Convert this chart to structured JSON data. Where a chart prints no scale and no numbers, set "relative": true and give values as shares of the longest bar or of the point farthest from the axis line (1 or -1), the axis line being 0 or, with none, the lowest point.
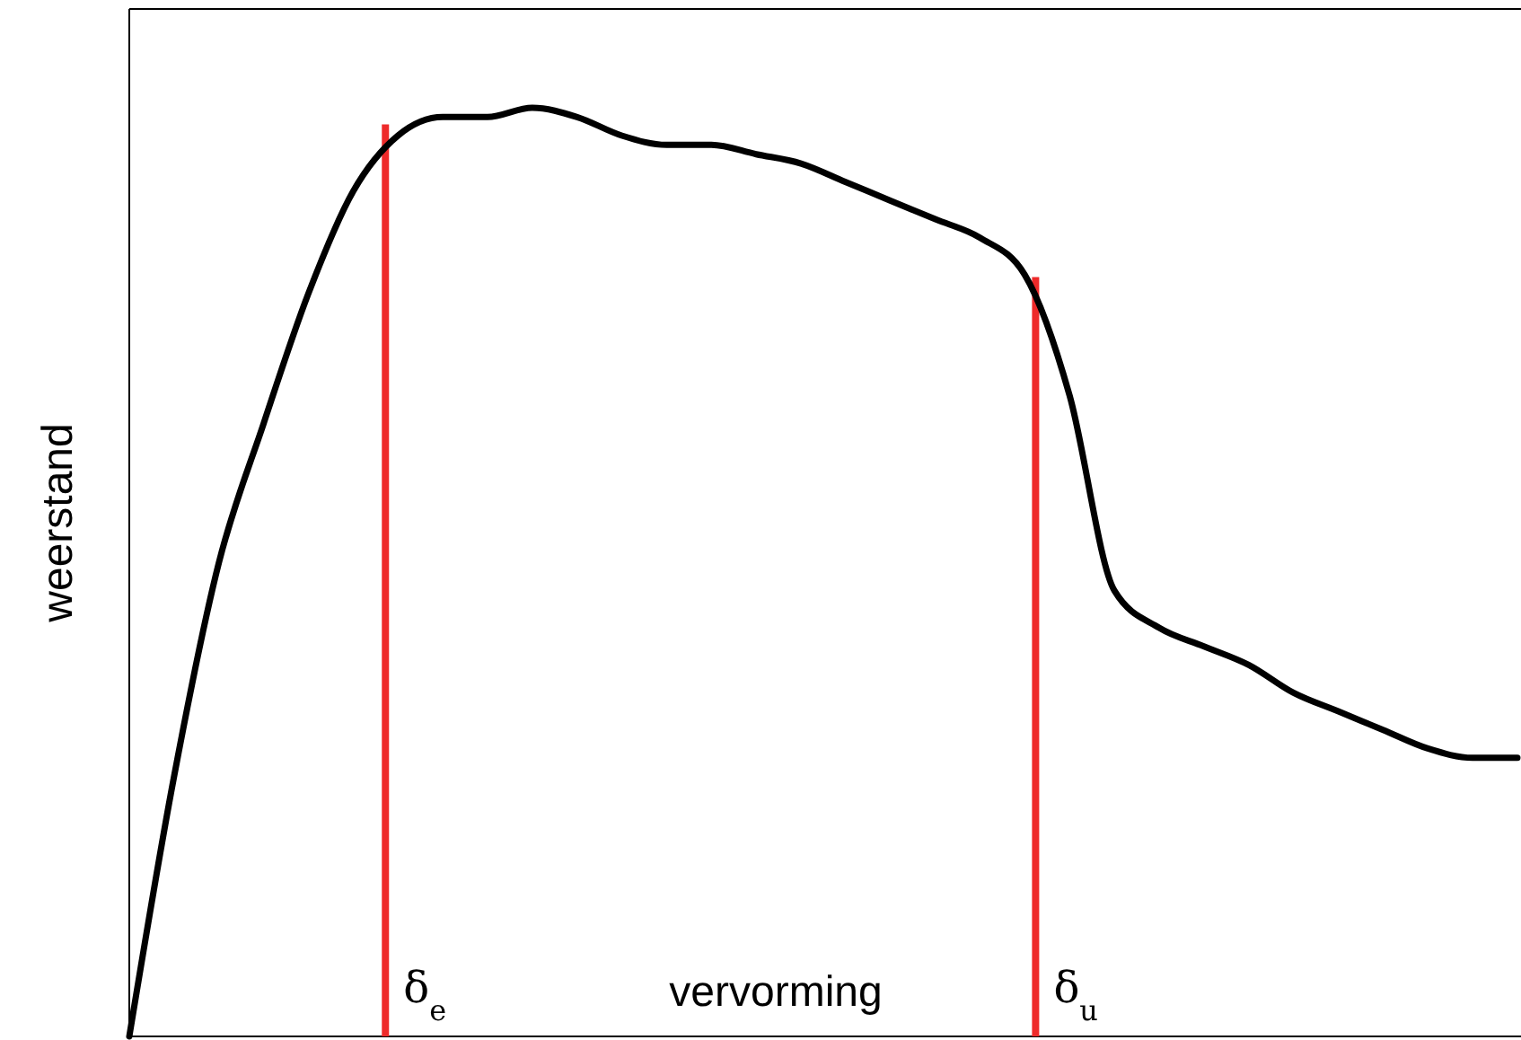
{
  "chart_data": {
    "type": "line",
    "relative": true,
    "xlabel": "vervorming",
    "ylabel": "weerstand",
    "categories": [
      null,
      null,
      null,
      null,
      null,
      null,
      null,
      null,
      null,
      null,
      null,
      null,
      null,
      null,
      null,
      null,
      null,
      null,
      null,
      null,
      null,
      null,
      null,
      null,
      null,
      null,
      null,
      null,
      null,
      null,
      null,
      null
    ],
    "series": [
      {
        "color": "#000000",
        "values": [
          0,
          0.28,
          0.51,
          0.66,
          0.8,
          0.91,
          0.97,
          0.99,
          0.99,
          1,
          0.99,
          0.97,
          0.96,
          0.96,
          0.95,
          0.94,
          0.92,
          0.9,
          0.88,
          0.86,
          0.82,
          0.69,
          0.48,
          0.44,
          0.42,
          0.4,
          0.37,
          0.35,
          0.33,
          0.31,
          0.3,
          0.3
        ]
      }
    ],
    "annotations": [
      "δ$_{e}$",
      "δ$_{u}$"
    ]
  }
}
